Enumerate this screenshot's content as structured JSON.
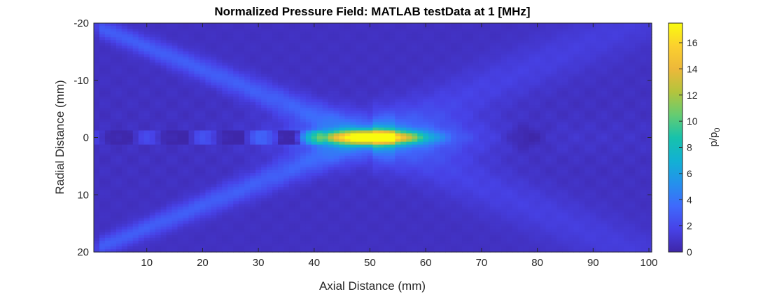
{
  "chart_data": {
    "type": "heatmap",
    "title": "Normalized Pressure Field: MATLAB testData at 1 [MHz]",
    "xlabel": "Axial Distance (mm)",
    "ylabel": "Radial Distance (mm)",
    "colorbar_label_main": "p/p",
    "colorbar_label_sub": "0",
    "colormap": "parula",
    "xlim": [
      0.5,
      100.5
    ],
    "ylim": [
      -20,
      20
    ],
    "y_reversed": true,
    "clim": [
      0,
      17.5
    ],
    "x_ticks": [
      10,
      20,
      30,
      40,
      50,
      60,
      70,
      80,
      90,
      100
    ],
    "y_ticks": [
      -20,
      -10,
      0,
      10,
      20
    ],
    "colorbar_ticks": [
      0,
      2,
      4,
      6,
      8,
      10,
      12,
      14,
      16
    ],
    "x_tick_labels": [
      "10",
      "20",
      "30",
      "40",
      "50",
      "60",
      "70",
      "80",
      "90",
      "100"
    ],
    "y_tick_labels": [
      "-20",
      "-10",
      "0",
      "10",
      "20"
    ],
    "colorbar_tick_labels": [
      "0",
      "2",
      "4",
      "6",
      "8",
      "10",
      "12",
      "14",
      "16"
    ],
    "peak": {
      "x": 50,
      "y": 0,
      "value": 17.4
    },
    "grid": false,
    "colorbar_position": "right"
  }
}
